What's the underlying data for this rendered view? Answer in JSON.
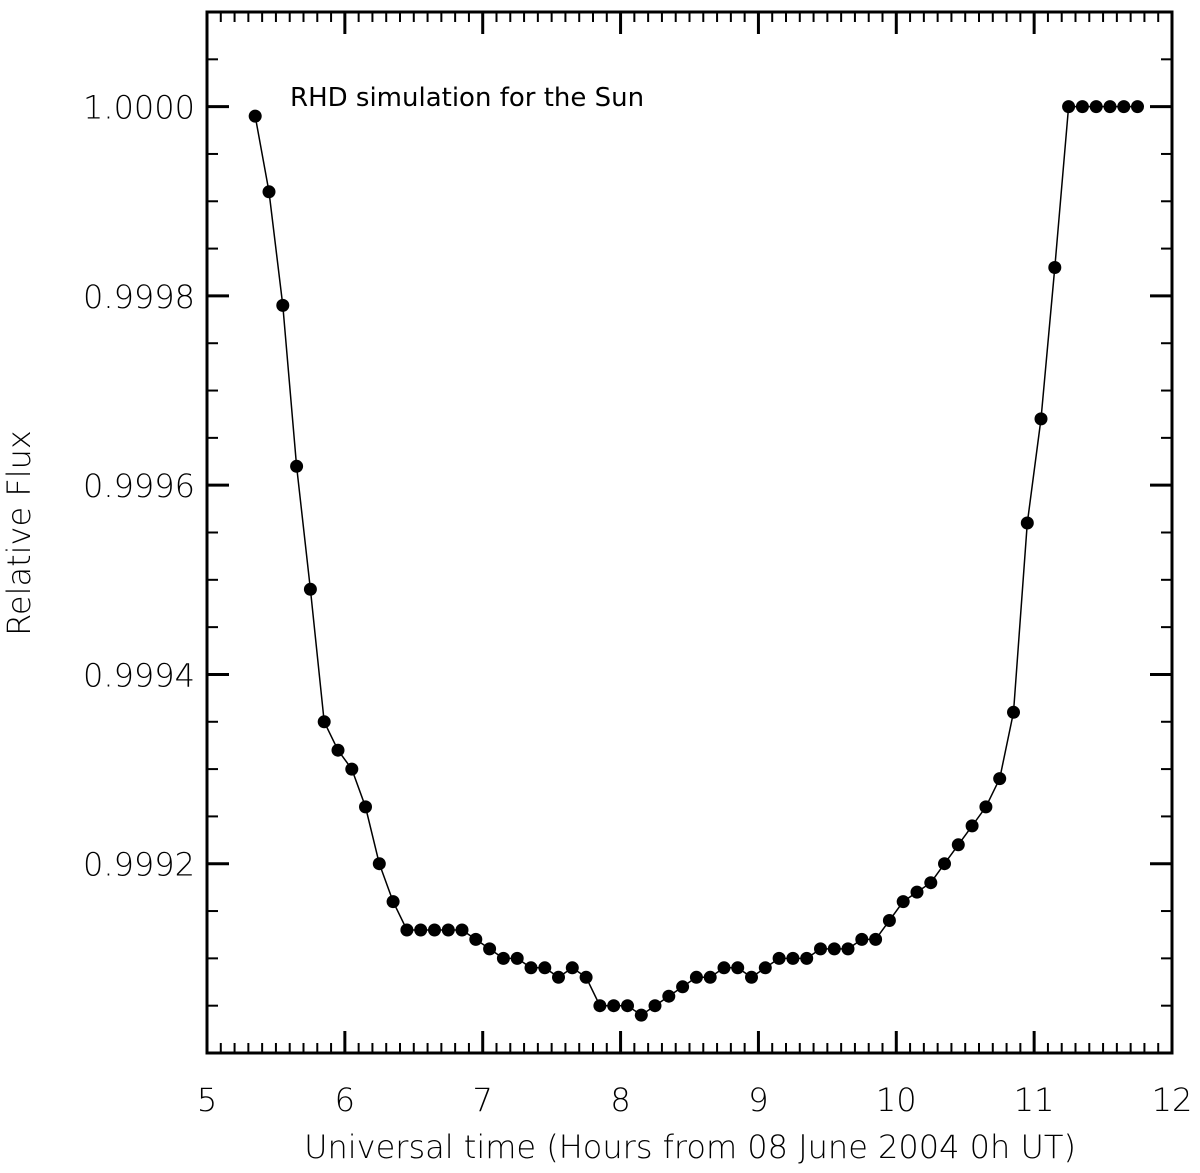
{
  "chart_data": {
    "type": "line",
    "xlabel": "Universal time (Hours from 08 June 2004 0h UT)",
    "ylabel": "Relative Flux",
    "xlim": [
      5,
      12
    ],
    "ylim": [
      0.999,
      1.0001
    ],
    "x_ticks": [
      5,
      6,
      7,
      8,
      9,
      10,
      11,
      12
    ],
    "x_tick_labels": [
      "5",
      "6",
      "7",
      "8",
      "9",
      "10",
      "11",
      "12"
    ],
    "y_ticks": [
      0.9992,
      0.9994,
      0.9996,
      0.9998,
      1.0
    ],
    "y_tick_labels": [
      "0.9992",
      "0.9994",
      "0.9996",
      "0.9998",
      "1.0000"
    ],
    "grid": false,
    "legend_position": "top-left",
    "series": [
      {
        "name": "RHD simulation for the Sun",
        "color": "#000000",
        "x": [
          5.35,
          5.45,
          5.55,
          5.65,
          5.75,
          5.85,
          5.95,
          6.05,
          6.15,
          6.25,
          6.35,
          6.45,
          6.55,
          6.65,
          6.75,
          6.85,
          6.95,
          7.05,
          7.15,
          7.25,
          7.35,
          7.45,
          7.55,
          7.65,
          7.75,
          7.85,
          7.95,
          8.05,
          8.15,
          8.25,
          8.35,
          8.45,
          8.55,
          8.65,
          8.75,
          8.85,
          8.95,
          9.05,
          9.15,
          9.25,
          9.35,
          9.45,
          9.55,
          9.65,
          9.75,
          9.85,
          9.95,
          10.05,
          10.15,
          10.25,
          10.35,
          10.45,
          10.55,
          10.65,
          10.75,
          10.85,
          10.95,
          11.05,
          11.15,
          11.25,
          11.35,
          11.45,
          11.55,
          11.65,
          11.75
        ],
        "values": [
          0.99999,
          0.99991,
          0.99979,
          0.99962,
          0.99949,
          0.99935,
          0.99932,
          0.9993,
          0.99926,
          0.9992,
          0.99916,
          0.99913,
          0.99913,
          0.99913,
          0.99913,
          0.99913,
          0.99912,
          0.99911,
          0.9991,
          0.9991,
          0.99909,
          0.99909,
          0.99908,
          0.99909,
          0.99908,
          0.99905,
          0.99905,
          0.99905,
          0.99904,
          0.99905,
          0.99906,
          0.99907,
          0.99908,
          0.99908,
          0.99909,
          0.99909,
          0.99908,
          0.99909,
          0.9991,
          0.9991,
          0.9991,
          0.99911,
          0.99911,
          0.99911,
          0.99912,
          0.99912,
          0.99914,
          0.99916,
          0.99917,
          0.99918,
          0.9992,
          0.99922,
          0.99924,
          0.99926,
          0.99929,
          0.99936,
          0.99956,
          0.99967,
          0.99983,
          1.0,
          1.0,
          1.0,
          1.0,
          1.0,
          1.0
        ],
        "values_note": ""
      }
    ]
  }
}
